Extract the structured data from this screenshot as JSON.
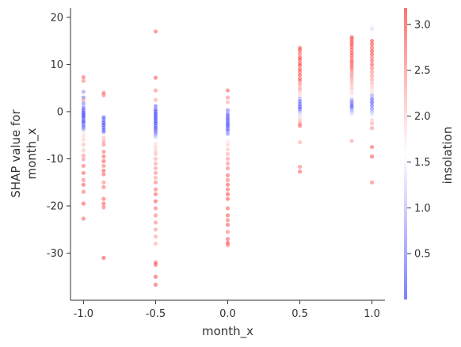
{
  "chart_data": {
    "type": "scatter",
    "xlabel": "month_x",
    "ylabel_lines": [
      "SHAP value for",
      "month_x"
    ],
    "xlim": [
      -1.09,
      1.09
    ],
    "ylim": [
      -40.0,
      22.0
    ],
    "xticks": [
      -1.0,
      -0.5,
      0.0,
      0.5,
      1.0
    ],
    "xtick_labels": [
      "-1.0",
      "-0.5",
      "0.0",
      "0.5",
      "1.0"
    ],
    "yticks": [
      20,
      10,
      0,
      -10,
      -20,
      -30
    ],
    "ytick_labels": [
      "20",
      "10",
      "0",
      "-10",
      "-20",
      "-30"
    ],
    "colorbar": {
      "label": "insolation",
      "min": 0.0,
      "max": 3.18,
      "ticks": [
        3.0,
        2.5,
        2.0,
        1.5,
        1.0,
        0.5
      ],
      "tick_labels": [
        "3.0",
        "2.5",
        "2.0",
        "1.5",
        "1.0",
        "0.5"
      ],
      "colormap": [
        "#0000ff",
        "#ffffff",
        "#ff0000"
      ]
    },
    "grid": false,
    "legend": "none",
    "point_alpha": 0.45,
    "columns": [
      {
        "x": -1.0,
        "points": [
          [
            7.3,
            2.9
          ],
          [
            6.5,
            2.6
          ],
          [
            4.2,
            0.7
          ],
          [
            3.0,
            0.5
          ],
          [
            2.5,
            2.4
          ],
          [
            1.8,
            0.6
          ],
          [
            1.2,
            0.9
          ],
          [
            0.7,
            0.5
          ],
          [
            0.3,
            0.4
          ],
          [
            -0.2,
            0.2
          ],
          [
            -0.6,
            0.3
          ],
          [
            -1.0,
            0.2
          ],
          [
            -1.4,
            0.4
          ],
          [
            -1.9,
            0.3
          ],
          [
            -2.3,
            0.2
          ],
          [
            -2.8,
            0.5
          ],
          [
            -3.3,
            0.3
          ],
          [
            -3.8,
            0.8
          ],
          [
            -4.5,
            1.8
          ],
          [
            -5.2,
            1.9
          ],
          [
            -6.0,
            2.0
          ],
          [
            -7.0,
            2.2
          ],
          [
            -8.2,
            2.1
          ],
          [
            -9.3,
            2.5
          ],
          [
            -10.1,
            2.6
          ],
          [
            -11.5,
            2.8
          ],
          [
            -13.0,
            2.9
          ],
          [
            -14.5,
            2.7
          ],
          [
            -15.5,
            3.0
          ],
          [
            -17.0,
            2.8
          ],
          [
            -19.5,
            3.0
          ],
          [
            -22.7,
            2.9
          ]
        ]
      },
      {
        "x": -0.86,
        "points": [
          [
            4.0,
            2.8
          ],
          [
            3.5,
            2.7
          ],
          [
            -1.2,
            0.2
          ],
          [
            -1.8,
            0.3
          ],
          [
            -2.4,
            0.1
          ],
          [
            -2.9,
            0.2
          ],
          [
            -3.4,
            0.4
          ],
          [
            -3.9,
            0.3
          ],
          [
            -4.3,
            0.5
          ],
          [
            -5.5,
            2.2
          ],
          [
            -6.3,
            2.4
          ],
          [
            -7.0,
            2.6
          ],
          [
            -8.5,
            2.8
          ],
          [
            -9.5,
            2.9
          ],
          [
            -10.5,
            3.0
          ],
          [
            -11.5,
            2.7
          ],
          [
            -12.5,
            3.0
          ],
          [
            -13.3,
            2.9
          ],
          [
            -15.0,
            2.6
          ],
          [
            -16.0,
            2.8
          ],
          [
            -18.5,
            2.9
          ],
          [
            -19.5,
            3.0
          ],
          [
            -20.3,
            2.8
          ],
          [
            -31.0,
            3.1
          ]
        ]
      },
      {
        "x": -0.5,
        "points": [
          [
            17.0,
            2.9
          ],
          [
            7.2,
            3.0
          ],
          [
            4.5,
            2.6
          ],
          [
            2.5,
            2.4
          ],
          [
            1.2,
            0.4
          ],
          [
            0.5,
            0.3
          ],
          [
            0.0,
            0.2
          ],
          [
            -0.5,
            0.1
          ],
          [
            -1.0,
            0.2
          ],
          [
            -1.5,
            0.1
          ],
          [
            -2.0,
            0.2
          ],
          [
            -2.5,
            0.1
          ],
          [
            -3.0,
            0.3
          ],
          [
            -3.5,
            0.2
          ],
          [
            -4.0,
            0.4
          ],
          [
            -4.5,
            0.5
          ],
          [
            -5.0,
            0.8
          ],
          [
            -5.5,
            1.2
          ],
          [
            -6.0,
            1.6
          ],
          [
            -6.8,
            1.9
          ],
          [
            -7.5,
            2.0
          ],
          [
            -8.3,
            2.1
          ],
          [
            -9.0,
            2.2
          ],
          [
            -10.0,
            2.3
          ],
          [
            -11.0,
            2.4
          ],
          [
            -12.0,
            2.5
          ],
          [
            -13.0,
            2.6
          ],
          [
            -14.0,
            2.4
          ],
          [
            -15.0,
            2.7
          ],
          [
            -16.5,
            2.8
          ],
          [
            -17.5,
            2.9
          ],
          [
            -19.0,
            3.0
          ],
          [
            -20.5,
            2.8
          ],
          [
            -22.0,
            2.7
          ],
          [
            -23.5,
            2.6
          ],
          [
            -25.0,
            2.5
          ],
          [
            -26.5,
            2.4
          ],
          [
            -28.0,
            2.3
          ],
          [
            -32.0,
            3.0
          ],
          [
            -32.5,
            2.9
          ],
          [
            -35.0,
            3.1
          ],
          [
            -36.7,
            3.0
          ]
        ]
      },
      {
        "x": 0.0,
        "points": [
          [
            4.5,
            2.9
          ],
          [
            3.0,
            2.6
          ],
          [
            2.0,
            2.3
          ],
          [
            0.3,
            0.5
          ],
          [
            -0.5,
            0.3
          ],
          [
            -1.0,
            0.4
          ],
          [
            -1.5,
            0.2
          ],
          [
            -2.0,
            0.3
          ],
          [
            -2.5,
            0.2
          ],
          [
            -3.0,
            0.1
          ],
          [
            -3.5,
            0.4
          ],
          [
            -4.0,
            0.3
          ],
          [
            -4.7,
            0.6
          ],
          [
            -5.5,
            1.6
          ],
          [
            -6.3,
            1.8
          ],
          [
            -7.0,
            2.0
          ],
          [
            -8.0,
            2.1
          ],
          [
            -9.0,
            2.3
          ],
          [
            -10.0,
            2.5
          ],
          [
            -11.0,
            2.6
          ],
          [
            -12.0,
            2.7
          ],
          [
            -13.5,
            2.9
          ],
          [
            -14.5,
            2.8
          ],
          [
            -15.5,
            3.0
          ],
          [
            -16.5,
            2.9
          ],
          [
            -17.5,
            3.1
          ],
          [
            -18.5,
            3.0
          ],
          [
            -20.5,
            2.9
          ],
          [
            -22.0,
            3.0
          ],
          [
            -23.0,
            2.8
          ],
          [
            -24.0,
            3.0
          ],
          [
            -25.5,
            2.7
          ],
          [
            -27.0,
            2.9
          ],
          [
            -27.8,
            3.0
          ],
          [
            -28.3,
            2.8
          ]
        ]
      },
      {
        "x": 0.5,
        "points": [
          [
            13.5,
            3.1
          ],
          [
            13.0,
            3.0
          ],
          [
            12.3,
            2.9
          ],
          [
            11.5,
            3.1
          ],
          [
            11.0,
            3.0
          ],
          [
            10.3,
            2.9
          ],
          [
            9.8,
            3.1
          ],
          [
            9.0,
            3.0
          ],
          [
            8.5,
            2.8
          ],
          [
            7.8,
            3.1
          ],
          [
            7.0,
            3.0
          ],
          [
            6.5,
            2.7
          ],
          [
            5.8,
            2.6
          ],
          [
            5.0,
            2.4
          ],
          [
            4.5,
            2.2
          ],
          [
            3.8,
            2.0
          ],
          [
            3.3,
            1.8
          ],
          [
            2.8,
            0.9
          ],
          [
            2.2,
            0.4
          ],
          [
            1.6,
            0.3
          ],
          [
            1.0,
            0.2
          ],
          [
            0.5,
            0.4
          ],
          [
            0.0,
            0.9
          ],
          [
            -0.5,
            1.3
          ],
          [
            -1.0,
            1.9
          ],
          [
            -1.8,
            2.2
          ],
          [
            -2.5,
            2.6
          ],
          [
            -3.0,
            2.9
          ],
          [
            -6.5,
            2.3
          ],
          [
            -11.7,
            2.7
          ],
          [
            -12.7,
            2.9
          ]
        ]
      },
      {
        "x": 0.86,
        "points": [
          [
            15.8,
            3.1
          ],
          [
            15.3,
            3.0
          ],
          [
            14.8,
            2.9
          ],
          [
            14.3,
            3.1
          ],
          [
            13.7,
            3.0
          ],
          [
            13.1,
            2.9
          ],
          [
            12.5,
            3.1
          ],
          [
            11.9,
            3.0
          ],
          [
            11.3,
            2.8
          ],
          [
            10.7,
            3.1
          ],
          [
            10.1,
            3.0
          ],
          [
            9.5,
            2.9
          ],
          [
            8.9,
            2.8
          ],
          [
            8.2,
            2.6
          ],
          [
            7.6,
            2.5
          ],
          [
            7.0,
            2.4
          ],
          [
            6.3,
            2.3
          ],
          [
            5.6,
            2.2
          ],
          [
            4.8,
            2.1
          ],
          [
            4.0,
            2.0
          ],
          [
            3.2,
            1.7
          ],
          [
            2.5,
            0.7
          ],
          [
            1.9,
            0.3
          ],
          [
            1.3,
            0.2
          ],
          [
            0.8,
            0.4
          ],
          [
            0.2,
            0.8
          ],
          [
            -0.4,
            1.2
          ],
          [
            -6.2,
            2.4
          ]
        ]
      },
      {
        "x": 1.0,
        "points": [
          [
            18.2,
            1.5
          ],
          [
            17.5,
            1.3
          ],
          [
            15.0,
            3.1
          ],
          [
            14.3,
            3.0
          ],
          [
            13.6,
            2.9
          ],
          [
            12.9,
            3.1
          ],
          [
            12.2,
            3.0
          ],
          [
            11.5,
            2.8
          ],
          [
            10.8,
            2.9
          ],
          [
            10.0,
            3.0
          ],
          [
            9.2,
            2.7
          ],
          [
            8.4,
            2.6
          ],
          [
            7.6,
            2.5
          ],
          [
            6.8,
            2.4
          ],
          [
            6.0,
            2.3
          ],
          [
            5.2,
            2.1
          ],
          [
            4.4,
            1.9
          ],
          [
            3.5,
            0.8
          ],
          [
            2.7,
            0.3
          ],
          [
            2.0,
            0.2
          ],
          [
            1.3,
            0.4
          ],
          [
            0.6,
            0.6
          ],
          [
            0.0,
            1.0
          ],
          [
            -0.6,
            1.3
          ],
          [
            -1.2,
            1.6
          ],
          [
            -1.8,
            2.0
          ],
          [
            -2.5,
            2.3
          ],
          [
            -3.5,
            2.5
          ],
          [
            -7.5,
            2.9
          ],
          [
            -9.5,
            3.0
          ],
          [
            -15.0,
            2.7
          ]
        ]
      }
    ]
  }
}
